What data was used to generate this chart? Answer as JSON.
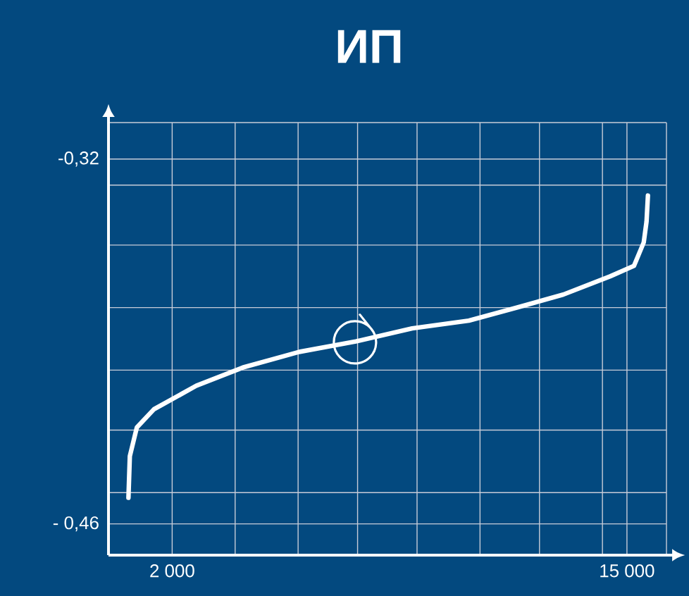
{
  "chart_data": {
    "type": "line",
    "title": "ИП",
    "xlim": [
      180,
      16130
    ],
    "ylim": [
      -0.472,
      -0.306
    ],
    "xticks": [
      {
        "value": 2000,
        "label": "2 000"
      },
      {
        "value": 3800,
        "label": null
      },
      {
        "value": 5600,
        "label": null
      },
      {
        "value": 7300,
        "label": null
      },
      {
        "value": 9000,
        "label": null
      },
      {
        "value": 10800,
        "label": null
      },
      {
        "value": 12500,
        "label": null
      },
      {
        "value": 14300,
        "label": null
      },
      {
        "value": 15000,
        "label": "15 000"
      },
      {
        "value": 16130,
        "label": null
      }
    ],
    "yticks": [
      {
        "value": -0.46,
        "label": "- 0,46"
      },
      {
        "value": -0.448,
        "label": null
      },
      {
        "value": -0.424,
        "label": null
      },
      {
        "value": -0.401,
        "label": null
      },
      {
        "value": -0.377,
        "label": null
      },
      {
        "value": -0.353,
        "label": null
      },
      {
        "value": -0.33,
        "label": null
      },
      {
        "value": -0.32,
        "label": "-0,32"
      },
      {
        "value": -0.306,
        "label": null
      }
    ],
    "grid": true,
    "marker": "none",
    "line_style": "solid",
    "series": [
      {
        "color": "#ffffff",
        "x": [
          750,
          790,
          990,
          1480,
          2690,
          4020,
          5630,
          7250,
          8860,
          10480,
          11850,
          13180,
          14520,
          15200,
          15480,
          15560,
          15600
        ],
        "values": [
          -0.45,
          -0.434,
          -0.423,
          -0.416,
          -0.407,
          -0.4,
          -0.394,
          -0.39,
          -0.385,
          -0.382,
          -0.377,
          -0.372,
          -0.365,
          -0.361,
          -0.352,
          -0.344,
          -0.334
        ]
      }
    ]
  }
}
